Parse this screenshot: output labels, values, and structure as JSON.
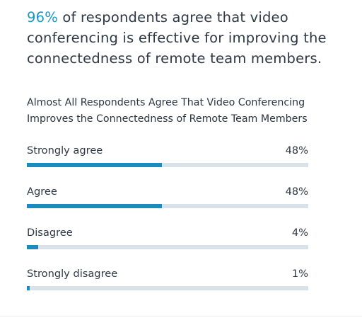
{
  "headline": {
    "highlight": "96%",
    "text": " of respondents agree that video conferencing is effective for improving the connectedness of remote team members."
  },
  "chart_data": {
    "type": "bar",
    "orientation": "horizontal",
    "title": "Almost All Respondents Agree That Video Conferencing Improves the Connectedness of Remote Team Members",
    "categories": [
      "Strongly agree",
      "Agree",
      "Disagree",
      "Strongly disagree"
    ],
    "values": [
      48,
      48,
      4,
      1
    ],
    "value_labels": [
      "48%",
      "48%",
      "4%",
      "1%"
    ],
    "unit": "%",
    "xlim": [
      0,
      100
    ],
    "grid": false,
    "colors": {
      "bar": "#1a8cc0",
      "track": "#d9e2e8",
      "highlight": "#1a98c9"
    }
  }
}
